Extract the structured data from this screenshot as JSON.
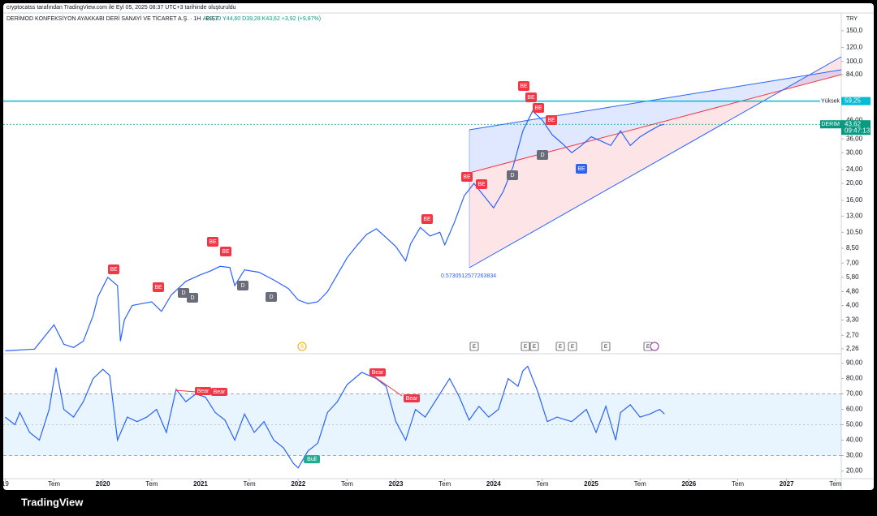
{
  "header": {
    "attribution": "cryptocatss tarafından TradingView.com ile Eyl 05, 2025 08:37 UTC+3 tarihinde oluşturuldu",
    "brand": "TradingView"
  },
  "chart_data": [
    {
      "type": "line",
      "title": "DERİMOD KONFEKSİYON AYAKKABI DERİ SANAYİ VE TİCARET A.Ş. · 1H · BIST",
      "ohlc": "A39,70 Y44,60 D39,28 K43,62 +3,92 (+9,87%)",
      "currency": "TRY",
      "log_scale": true,
      "color": "#2962ff",
      "xlim": [
        2018.98,
        2027.56
      ],
      "xticks": [
        {
          "value": 2019,
          "label": "19"
        },
        {
          "value": 2019.5,
          "label": "Tem"
        },
        2020,
        {
          "value": 2020.5,
          "label": "Tem"
        },
        2021,
        {
          "value": 2021.5,
          "label": "Tem"
        },
        2022,
        {
          "value": 2022.5,
          "label": "Tem"
        },
        2023,
        {
          "value": 2023.5,
          "label": "Tem"
        },
        2024,
        {
          "value": 2024.5,
          "label": "Tem"
        },
        2025,
        {
          "value": 2025.5,
          "label": "Tem"
        },
        2026,
        {
          "value": 2026.5,
          "label": "Tem"
        },
        2027,
        {
          "value": 2027.5,
          "label": "Tem"
        }
      ],
      "ylim": [
        2.14,
        163
      ],
      "yticks": [
        {
          "value": 150,
          "label": "150,0"
        },
        {
          "value": 120,
          "label": "120,0"
        },
        {
          "value": 100,
          "label": "100,0"
        },
        {
          "value": 84,
          "label": "84,00"
        },
        {
          "value": 46,
          "label": "46,00"
        },
        {
          "value": 36,
          "label": "36,00"
        },
        {
          "value": 30,
          "label": "30,00"
        },
        {
          "value": 24,
          "label": "24,00"
        },
        {
          "value": 20,
          "label": "20,00"
        },
        {
          "value": 16,
          "label": "16,00"
        },
        {
          "value": 13,
          "label": "13,00"
        },
        {
          "value": 10.5,
          "label": "10,50"
        },
        {
          "value": 8.5,
          "label": "8,50"
        },
        {
          "value": 7,
          "label": "7,00"
        },
        {
          "value": 5.8,
          "label": "5,80"
        },
        {
          "value": 4.8,
          "label": "4,80"
        },
        {
          "value": 4,
          "label": "4,00"
        },
        {
          "value": 3.3,
          "label": "3,30"
        },
        {
          "value": 2.7,
          "label": "2,70"
        },
        {
          "value": 2.26,
          "label": "2,26"
        }
      ],
      "x": [
        2019.0,
        2019.3,
        2019.5,
        2019.6,
        2019.7,
        2019.8,
        2019.9,
        2019.95,
        2020.05,
        2020.15,
        2020.18,
        2020.22,
        2020.3,
        2020.4,
        2020.5,
        2020.6,
        2020.7,
        2020.85,
        2021.0,
        2021.1,
        2021.2,
        2021.3,
        2021.35,
        2021.45,
        2021.6,
        2021.75,
        2021.9,
        2022.0,
        2022.1,
        2022.2,
        2022.3,
        2022.4,
        2022.5,
        2022.6,
        2022.7,
        2022.8,
        2022.9,
        2023.0,
        2023.1,
        2023.15,
        2023.25,
        2023.35,
        2023.45,
        2023.5,
        2023.6,
        2023.7,
        2023.8,
        2023.9,
        2024.0,
        2024.1,
        2024.2,
        2024.3,
        2024.4,
        2024.5,
        2024.6,
        2024.7,
        2024.8,
        2024.9,
        2025.0,
        2025.1,
        2025.2,
        2025.3,
        2025.4,
        2025.5,
        2025.6,
        2025.7,
        2025.75
      ],
      "values": [
        2.2,
        2.25,
        3.1,
        2.4,
        2.3,
        2.5,
        3.5,
        4.5,
        5.8,
        5.2,
        2.5,
        3.3,
        4.0,
        4.1,
        4.2,
        3.7,
        4.6,
        5.5,
        6.0,
        6.3,
        6.7,
        6.6,
        5.2,
        6.4,
        6.2,
        5.6,
        5.0,
        4.3,
        4.1,
        4.2,
        4.8,
        6.0,
        7.5,
        8.8,
        10.2,
        11.0,
        9.8,
        8.7,
        7.2,
        9.0,
        11.2,
        10.0,
        10.5,
        8.9,
        12.0,
        17.0,
        20.0,
        17.0,
        14.5,
        18.0,
        25.0,
        40.0,
        52.0,
        46.0,
        38.0,
        34.0,
        30.0,
        33.0,
        37.0,
        35.0,
        33.0,
        40.0,
        33.0,
        37.0,
        40.0,
        43.0,
        43.62
      ],
      "levels": [
        {
          "name": "Yüksek",
          "value": 59.25,
          "label": "59,25",
          "color": "#00bcd4"
        },
        {
          "name": "DERIM",
          "value": 43.62,
          "label": "43,62",
          "time": "09:47:13",
          "color": "#089981"
        }
      ],
      "fib_label": "0.5730512577263834",
      "markers": [
        {
          "text": "BE",
          "color": "#f23645"
        },
        {
          "text": "BE",
          "color": "#f23645"
        },
        {
          "text": "BE",
          "color": "#f23645"
        },
        {
          "text": "BE",
          "color": "#f23645"
        },
        {
          "text": "BE",
          "color": "#f23645"
        },
        {
          "text": "BE",
          "color": "#f23645"
        },
        {
          "text": "BE",
          "color": "#f23645"
        },
        {
          "text": "BE",
          "color": "#f23645"
        },
        {
          "text": "BE",
          "color": "#f23645"
        },
        {
          "text": "BE",
          "color": "#f23645"
        },
        {
          "text": "BE",
          "color": "#f23645"
        },
        {
          "text": "D",
          "color": "#6a6d78"
        },
        {
          "text": "D",
          "color": "#6a6d78"
        },
        {
          "text": "D",
          "color": "#6a6d78"
        },
        {
          "text": "D",
          "color": "#6a6d78"
        },
        {
          "text": "D",
          "color": "#6a6d78"
        },
        {
          "text": "D",
          "color": "#6a6d78"
        },
        {
          "text": "BE",
          "color": "#2962ff"
        }
      ],
      "events": [
        "S",
        "E",
        "E",
        "E",
        "E",
        "E",
        "E",
        "E"
      ]
    },
    {
      "type": "line",
      "color": "#2962ff",
      "ylim": [
        15,
        94
      ],
      "yticks": [
        {
          "value": 90,
          "label": "90,00"
        },
        {
          "value": 80,
          "label": "80,00"
        },
        {
          "value": 70,
          "label": "70,00"
        },
        {
          "value": 60,
          "label": "60,00"
        },
        {
          "value": 50,
          "label": "50,00"
        },
        {
          "value": 40,
          "label": "40,00"
        },
        {
          "value": 30,
          "label": "30,00"
        },
        {
          "value": 20,
          "label": "20,00"
        }
      ],
      "band": [
        30,
        70
      ],
      "midline": 50,
      "x": [
        2019.0,
        2019.1,
        2019.15,
        2019.25,
        2019.35,
        2019.45,
        2019.52,
        2019.6,
        2019.7,
        2019.8,
        2019.9,
        2020.0,
        2020.07,
        2020.15,
        2020.25,
        2020.35,
        2020.45,
        2020.55,
        2020.65,
        2020.75,
        2020.85,
        2020.95,
        2021.05,
        2021.15,
        2021.25,
        2021.35,
        2021.45,
        2021.55,
        2021.65,
        2021.75,
        2021.85,
        2021.95,
        2022.0,
        2022.1,
        2022.2,
        2022.3,
        2022.4,
        2022.5,
        2022.65,
        2022.8,
        2022.9,
        2023.0,
        2023.1,
        2023.2,
        2023.3,
        2023.45,
        2023.55,
        2023.65,
        2023.75,
        2023.85,
        2023.95,
        2024.05,
        2024.15,
        2024.25,
        2024.3,
        2024.35,
        2024.45,
        2024.55,
        2024.65,
        2024.8,
        2024.95,
        2025.05,
        2025.15,
        2025.25,
        2025.3,
        2025.4,
        2025.5,
        2025.6,
        2025.7,
        2025.75
      ],
      "values": [
        55,
        50,
        58,
        45,
        40,
        60,
        87,
        60,
        55,
        65,
        80,
        86,
        82,
        40,
        55,
        52,
        55,
        60,
        45,
        73,
        65,
        70,
        68,
        58,
        53,
        40,
        57,
        45,
        52,
        40,
        35,
        25,
        22,
        33,
        38,
        58,
        65,
        76,
        84,
        80,
        75,
        52,
        40,
        60,
        55,
        70,
        80,
        68,
        53,
        62,
        55,
        60,
        80,
        75,
        85,
        88,
        72,
        52,
        55,
        52,
        60,
        45,
        62,
        40,
        58,
        63,
        55,
        57,
        60,
        57
      ],
      "markers": [
        {
          "text": "Bear",
          "color": "#f23645"
        },
        {
          "text": "Bear",
          "color": "#f23645"
        },
        {
          "text": "Bear",
          "color": "#f23645"
        },
        {
          "text": "Bear",
          "color": "#f23645"
        },
        {
          "text": "Bull",
          "color": "#22ab94"
        }
      ]
    }
  ]
}
